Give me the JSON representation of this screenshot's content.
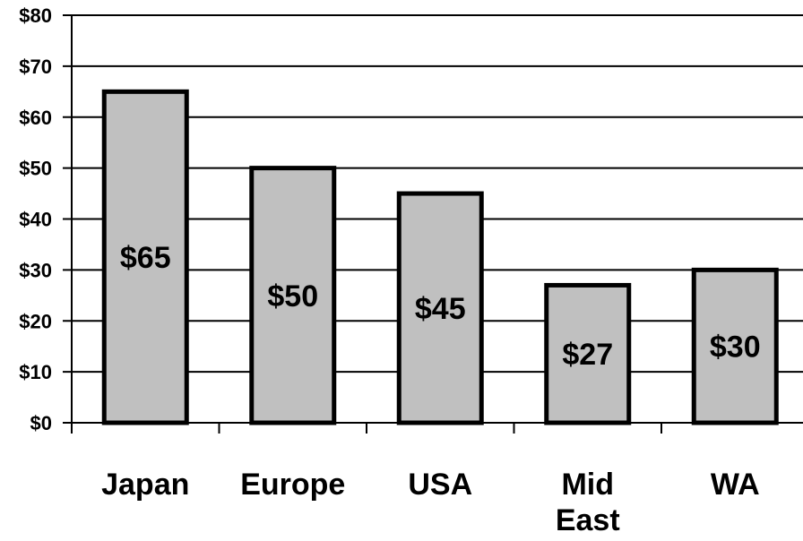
{
  "chart_data": {
    "type": "bar",
    "categories": [
      [
        "Japan"
      ],
      [
        "Europe"
      ],
      [
        "USA"
      ],
      [
        "Mid",
        "East"
      ],
      [
        "WA"
      ]
    ],
    "values": [
      65,
      50,
      45,
      27,
      30
    ],
    "data_labels": [
      "$65",
      "$50",
      "$45",
      "$27",
      "$30"
    ],
    "y_ticks": [
      "$0",
      "$10",
      "$20",
      "$30",
      "$40",
      "$50",
      "$60",
      "$70",
      "$80"
    ],
    "ylim": [
      0,
      80
    ],
    "grid": true,
    "bar_color": "#c0c0c0",
    "title": "",
    "xlabel": "",
    "ylabel": ""
  }
}
